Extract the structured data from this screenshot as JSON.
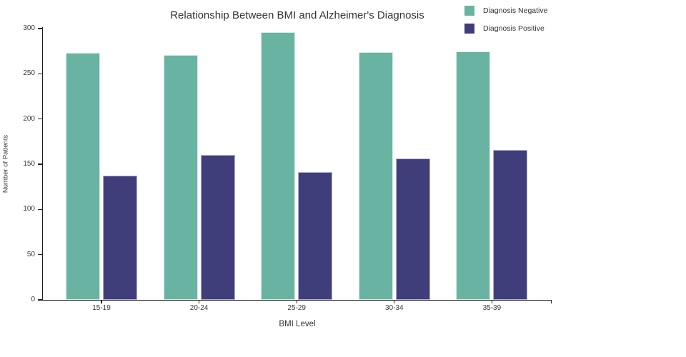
{
  "title": "Relationship Between BMI and Alzheimer's Diagnosis",
  "colors": {
    "background": "#ffffff",
    "axis": "#1f1f1f",
    "text": "#333333",
    "negative_fill": "#69b3a2",
    "negative_border": "#d9ece5",
    "positive_fill": "#3f3d7a",
    "positive_border": "#b3b1d4"
  },
  "legend": {
    "position": "top-right",
    "items": [
      {
        "label": "Diagnosis Negative",
        "color": "#69b3a2"
      },
      {
        "label": "Diagnosis Positive",
        "color": "#3f3d7a"
      }
    ]
  },
  "chart_data": {
    "type": "bar",
    "title": "Relationship Between BMI and Alzheimer's Diagnosis",
    "xlabel": "BMI Level",
    "ylabel": "Number of Patients",
    "categories": [
      "15-19",
      "20-24",
      "25-29",
      "30-34",
      "35-39"
    ],
    "series": [
      {
        "name": "Diagnosis Negative",
        "color": "#69b3a2",
        "border_color": "#d9ece5",
        "values": [
          273,
          271,
          296,
          274,
          275
        ]
      },
      {
        "name": "Diagnosis Positive",
        "color": "#3f3d7a",
        "border_color": "#b3b1d4",
        "values": [
          137,
          160,
          141,
          156,
          166
        ]
      }
    ],
    "ylim": [
      0,
      300
    ],
    "yticks": [
      0,
      50,
      100,
      150,
      200,
      250,
      300
    ],
    "grid": false,
    "legend_position": "top-right"
  }
}
